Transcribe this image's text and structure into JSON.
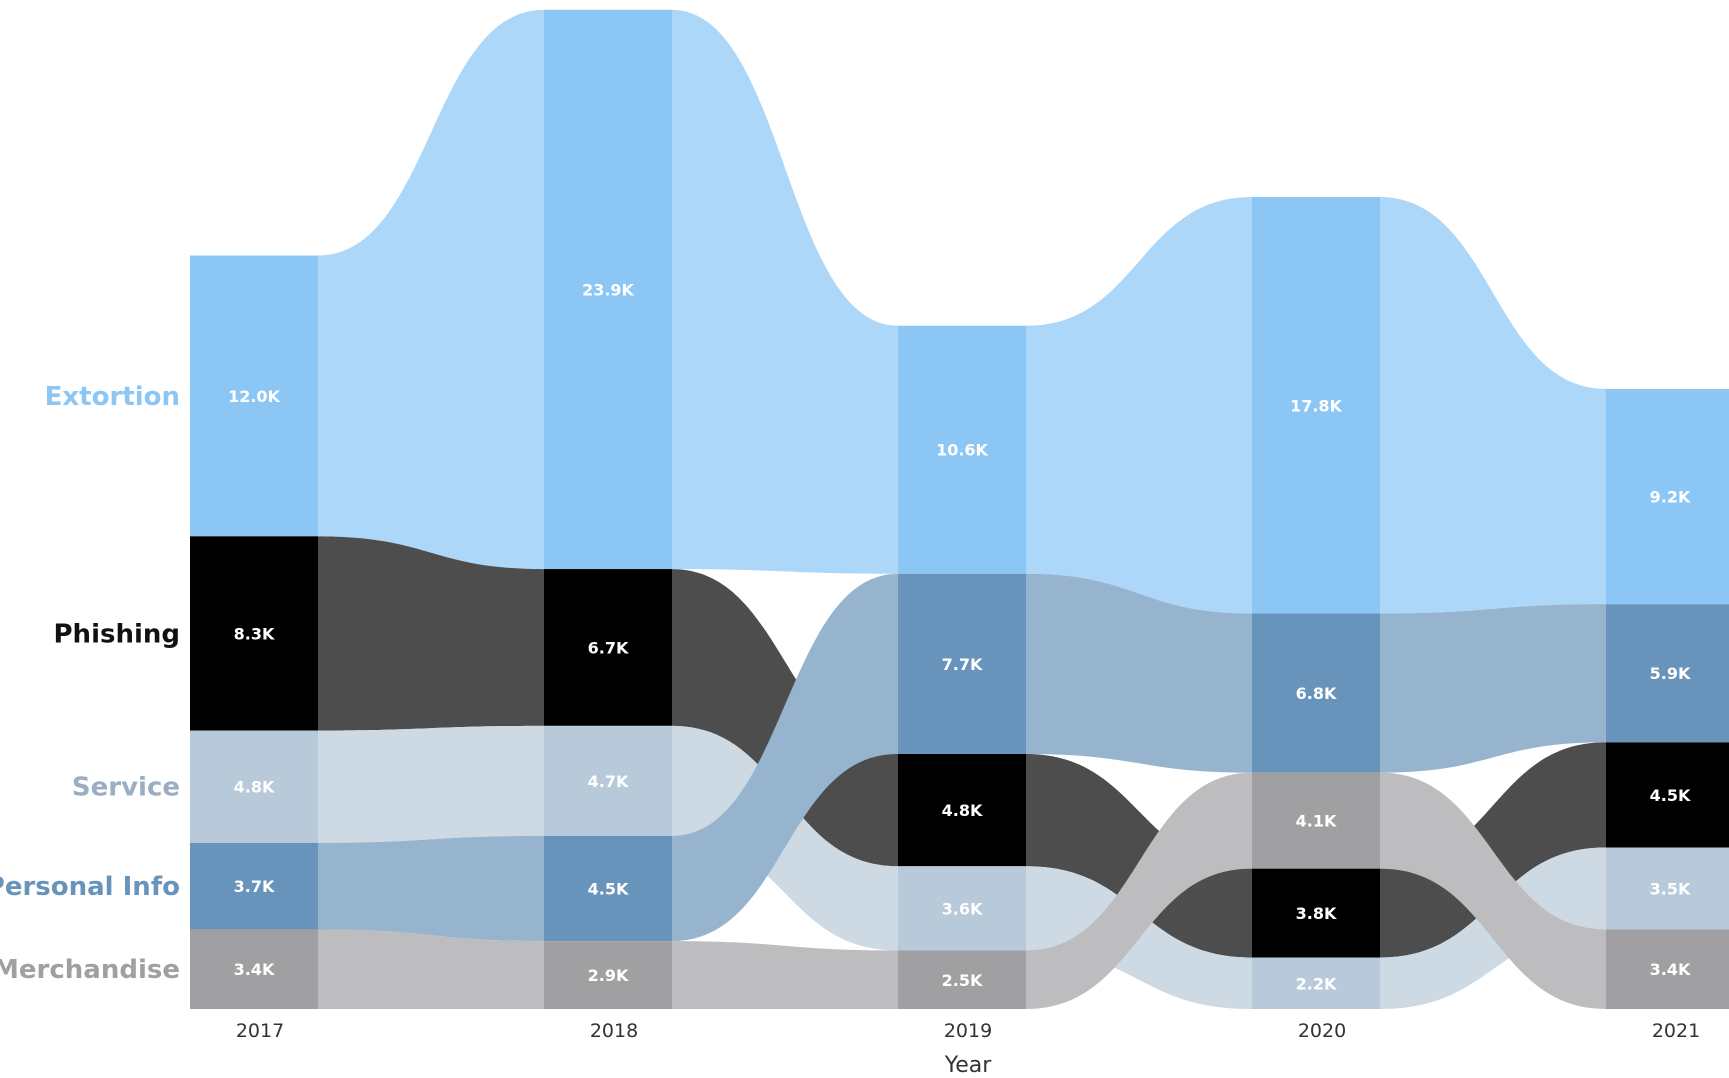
{
  "chart_data": {
    "type": "area",
    "subtype": "ribbon",
    "xlabel": "Year",
    "categories": [
      "2017",
      "2018",
      "2019",
      "2020",
      "2021"
    ],
    "series": [
      {
        "name": "Extortion",
        "values": [
          12.0,
          23.9,
          10.6,
          17.8,
          9.2
        ],
        "labels": [
          "12.0K",
          "23.9K",
          "10.6K",
          "17.8K",
          "9.2K"
        ],
        "color": "#8cc6f5",
        "text_color": "#8cc6f5"
      },
      {
        "name": "Phishing",
        "values": [
          8.3,
          6.7,
          4.8,
          3.8,
          4.5
        ],
        "labels": [
          "8.3K",
          "6.7K",
          "4.8K",
          "3.8K",
          "4.5K"
        ],
        "color": "#000000",
        "text_color": "#111111"
      },
      {
        "name": "Service",
        "values": [
          4.8,
          4.7,
          3.6,
          2.2,
          3.5
        ],
        "labels": [
          "4.8K",
          "4.7K",
          "3.6K",
          "2.2K",
          "3.5K"
        ],
        "color": "#b8cad9",
        "text_color": "#9aaec3"
      },
      {
        "name": "Personal Info",
        "values": [
          3.7,
          4.5,
          7.7,
          6.8,
          5.9
        ],
        "labels": [
          "3.7K",
          "4.5K",
          "7.7K",
          "6.8K",
          "5.9K"
        ],
        "color": "#6894bb",
        "text_color": "#6894bb"
      },
      {
        "name": "Merchandise",
        "values": [
          3.4,
          2.9,
          2.5,
          4.1,
          3.4
        ],
        "labels": [
          "3.4K",
          "2.9K",
          "2.5K",
          "4.1K",
          "3.4K"
        ],
        "color": "#a0a0a2",
        "text_color": "#a0a0a2"
      }
    ],
    "ribbon_colors": {
      "Extortion": "#acd7f9",
      "Phishing": "#4d4d4d",
      "Service": "#cdd9e3",
      "Personal Info": "#96b4cd",
      "Merchandise": "#bdbdbf"
    },
    "legend": "left"
  }
}
